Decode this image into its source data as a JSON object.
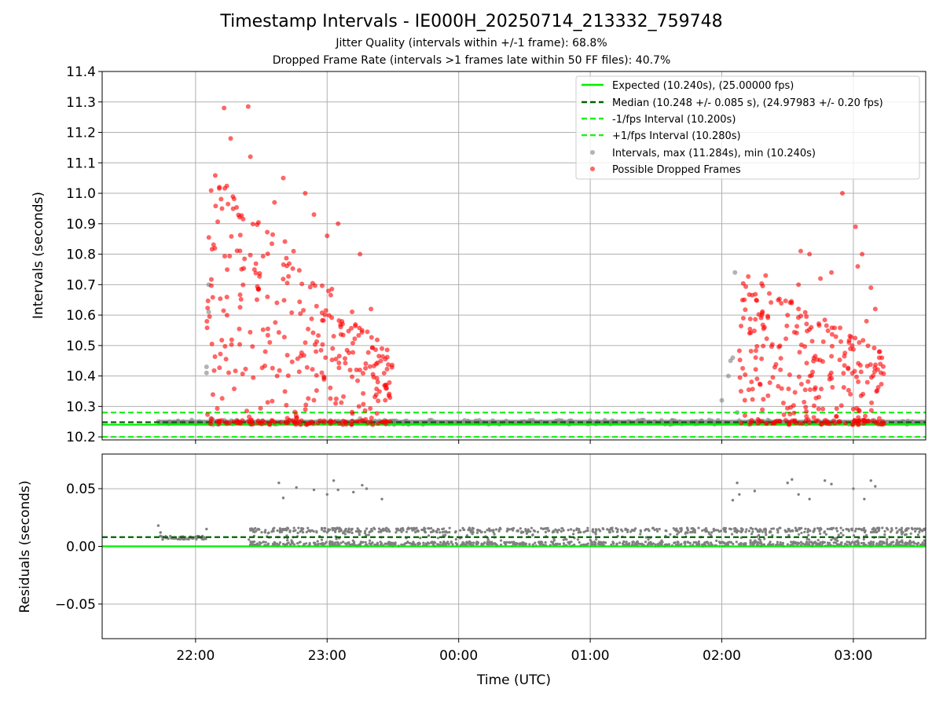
{
  "figure": {
    "title": "Timestamp Intervals - IE000H_20250714_213332_759748",
    "subtitle_1": "Jitter Quality (intervals within +/-1 frame): 68.8%",
    "subtitle_2": "Dropped Frame Rate (intervals >1 frames late within 50 FF files): 40.7%"
  },
  "colors": {
    "expected": "#00ee00",
    "median": "#006400",
    "fps_bounds": "#22ee22",
    "intervals": "#808080",
    "dropped": "#ff0000",
    "grid": "#b0b0b0"
  },
  "chart_data": [
    {
      "type": "scatter",
      "xlabel": "",
      "ylabel": "Intervals (seconds)",
      "ylim": [
        10.19,
        11.4
      ],
      "yticks": [
        10.2,
        10.3,
        10.4,
        10.5,
        10.6,
        10.7,
        10.8,
        10.9,
        11.0,
        11.1,
        11.2,
        11.3,
        11.4
      ],
      "ytick_labels": [
        "10.2",
        "10.3",
        "10.4",
        "10.5",
        "10.6",
        "10.7",
        "10.8",
        "10.9",
        "11.0",
        "11.1",
        "11.2",
        "11.3",
        "11.4"
      ],
      "xlim_hours": [
        21.29,
        27.55
      ],
      "x_time_range": [
        "21:17",
        "03:33"
      ],
      "xticks_hours": [
        22,
        23,
        24,
        25,
        26,
        27
      ],
      "xtick_labels": [
        "22:00",
        "23:00",
        "00:00",
        "01:00",
        "02:00",
        "03:00"
      ],
      "grid": true,
      "legend_position": "top-right",
      "reference_lines": [
        {
          "name": "Expected (10.240s), (25.00000 fps)",
          "y": 10.24,
          "style": "solid",
          "color_key": "expected"
        },
        {
          "name": "Median (10.248 +/- 0.085 s), (24.97983 +/- 0.20 fps)",
          "y": 10.248,
          "style": "dashed",
          "color_key": "median"
        },
        {
          "name": "-1/fps Interval (10.200s)",
          "y": 10.2,
          "style": "dashed",
          "color_key": "fps_bounds"
        },
        {
          "name": "+1/fps Interval (10.280s)",
          "y": 10.28,
          "style": "dashed",
          "color_key": "fps_bounds"
        }
      ],
      "series": [
        {
          "name": "Intervals, max (11.284s), min (10.240s)",
          "color_key": "intervals",
          "band": {
            "x_start": "21:43",
            "x_end": "03:33",
            "y_low": 10.24,
            "y_high": 10.256
          },
          "x": [
            "21:43",
            "21:55",
            "22:05",
            "22:05",
            "22:06",
            "22:06",
            "22:07",
            "22:07",
            "22:07",
            "22:08",
            "22:08",
            "23:15",
            "23:30",
            "02:00",
            "02:03",
            "02:04",
            "02:05",
            "02:06",
            "02:07"
          ],
          "y": [
            10.25,
            10.245,
            10.41,
            10.43,
            10.61,
            10.7,
            10.25,
            10.25,
            10.26,
            10.24,
            10.255,
            10.26,
            10.25,
            10.32,
            10.4,
            10.45,
            10.46,
            10.74,
            10.28
          ]
        },
        {
          "name": "Possible Dropped Frames",
          "color_key": "dropped",
          "clusters": [
            {
              "x_start": "22:05",
              "x_end": "23:30",
              "y_min": 10.24,
              "y_max": 11.284,
              "y_top_start": 11.1,
              "y_top_end": 10.49
            },
            {
              "x_start": "02:08",
              "x_end": "03:14",
              "y_min": 10.24,
              "y_max": 11.0,
              "y_top_start": 10.75,
              "y_top_end": 10.48
            }
          ],
          "x": [
            "22:13",
            "22:24",
            "22:25",
            "22:16",
            "22:40",
            "22:50",
            "23:05",
            "22:54",
            "22:36",
            "23:00",
            "23:15",
            "23:20",
            "23:25",
            "02:55",
            "02:36",
            "02:40",
            "03:01",
            "03:04",
            "03:02",
            "02:50",
            "02:45",
            "03:08",
            "03:10",
            "03:12",
            "03:13",
            "02:20",
            "02:30",
            "02:35",
            "02:58",
            "03:06"
          ],
          "y": [
            11.28,
            11.285,
            11.12,
            11.18,
            11.05,
            11.0,
            10.9,
            10.93,
            10.97,
            10.86,
            10.8,
            10.62,
            10.49,
            11.0,
            10.81,
            10.8,
            10.89,
            10.8,
            10.76,
            10.74,
            10.72,
            10.69,
            10.62,
            10.48,
            10.46,
            10.73,
            10.6,
            10.7,
            10.51,
            10.58
          ]
        }
      ]
    },
    {
      "type": "scatter",
      "xlabel": "Time (UTC)",
      "ylabel": "Residuals (seconds)",
      "ylim": [
        -0.08,
        0.08
      ],
      "yticks": [
        -0.05,
        0.0,
        0.05
      ],
      "ytick_labels": [
        "−0.05",
        "0.00",
        "0.05"
      ],
      "xlim_hours": [
        21.29,
        27.55
      ],
      "xticks_hours": [
        22,
        23,
        24,
        25,
        26,
        27
      ],
      "xtick_labels": [
        "22:00",
        "23:00",
        "00:00",
        "01:00",
        "02:00",
        "03:00"
      ],
      "grid": true,
      "reference_lines": [
        {
          "y": 0.0,
          "style": "solid",
          "color_key": "expected"
        },
        {
          "y": 0.008,
          "style": "dashed",
          "color_key": "median"
        }
      ],
      "series": [
        {
          "color_key": "intervals",
          "band": {
            "x_start": "22:24",
            "x_end": "03:33",
            "y_low": 0.0,
            "y_high": 0.016
          },
          "x": [
            "21:43",
            "21:44",
            "21:44",
            "21:45",
            "22:05",
            "22:38",
            "22:40",
            "22:46",
            "22:54",
            "23:00",
            "23:03",
            "23:05",
            "23:12",
            "23:16",
            "23:18",
            "23:25",
            "02:05",
            "02:07",
            "02:08",
            "02:15",
            "02:30",
            "02:32",
            "02:35",
            "02:40",
            "02:47",
            "02:50",
            "03:00",
            "03:05",
            "03:08",
            "03:10"
          ],
          "y": [
            0.018,
            0.012,
            0.009,
            0.006,
            0.015,
            0.055,
            0.042,
            0.051,
            0.049,
            0.045,
            0.057,
            0.049,
            0.047,
            0.053,
            0.05,
            0.041,
            0.04,
            0.055,
            0.045,
            0.048,
            0.055,
            0.058,
            0.045,
            0.041,
            0.057,
            0.054,
            0.05,
            0.041,
            0.057,
            0.052
          ]
        }
      ]
    }
  ]
}
